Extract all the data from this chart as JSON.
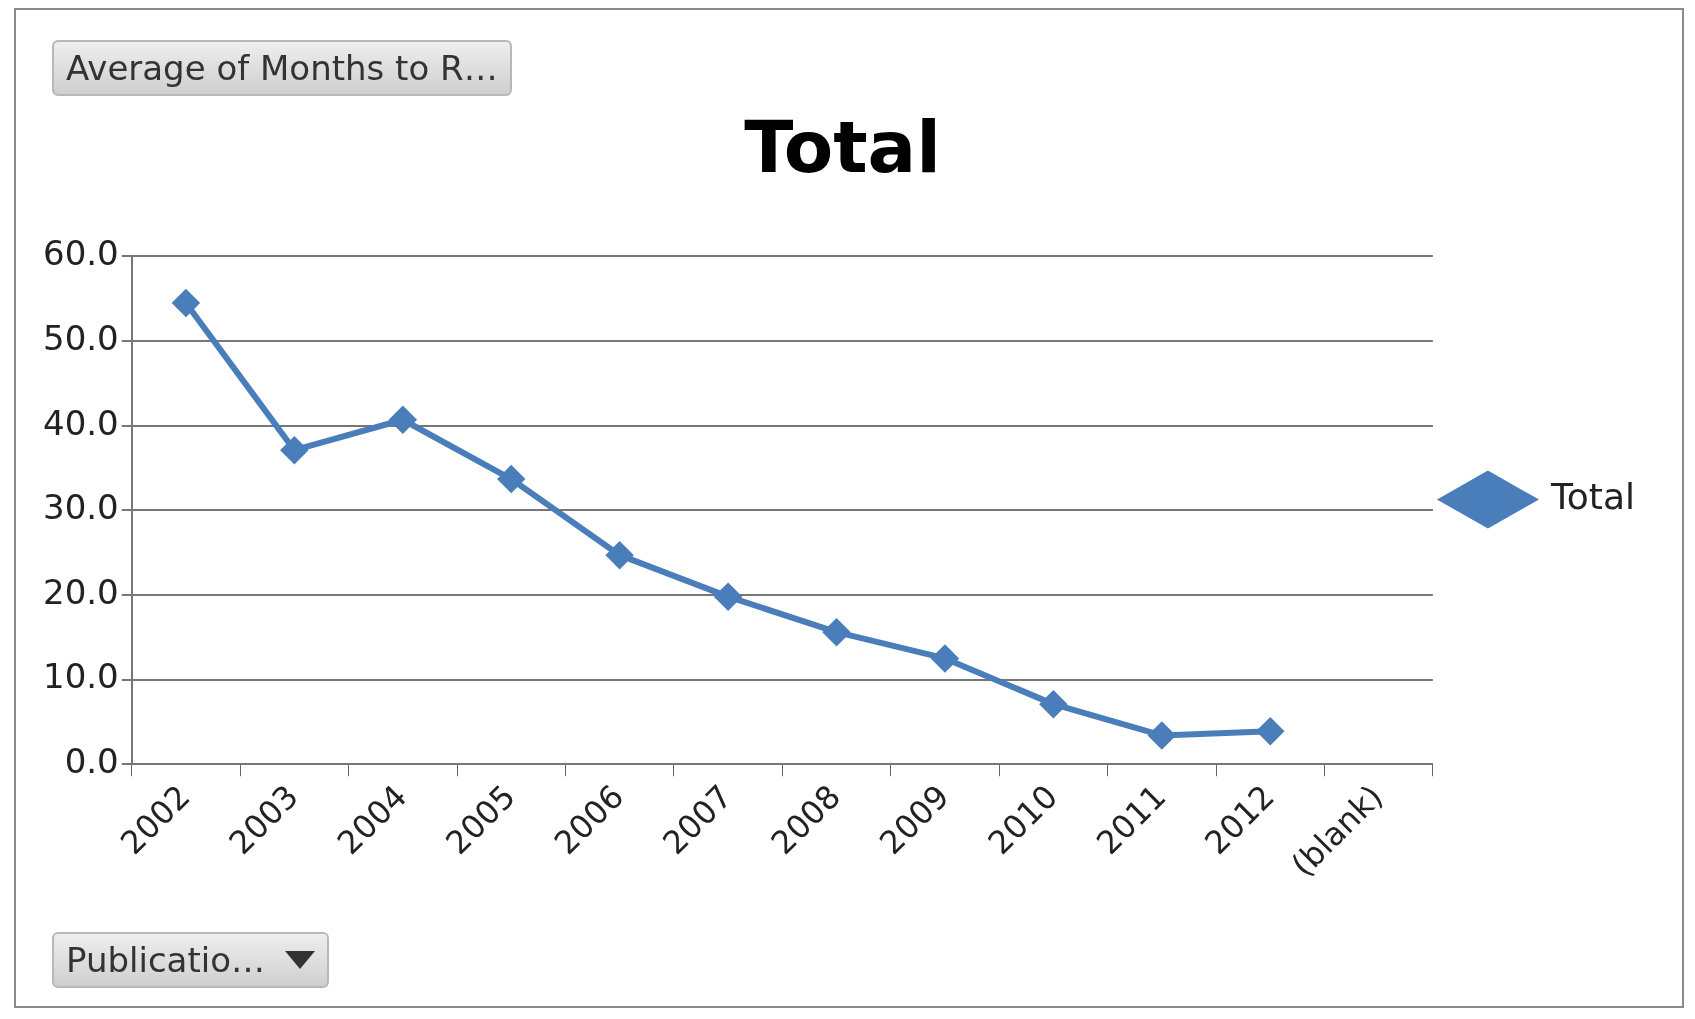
{
  "chart_data": {
    "type": "line",
    "title": "Total",
    "categories": [
      "2002",
      "2003",
      "2004",
      "2005",
      "2006",
      "2007",
      "2008",
      "2009",
      "2010",
      "2011",
      "2012",
      "(blank)"
    ],
    "series": [
      {
        "name": "Total",
        "color": "#4a7ebb",
        "values": [
          54.5,
          37.1,
          40.7,
          33.7,
          24.7,
          19.8,
          15.6,
          12.5,
          7.1,
          3.4,
          3.9,
          null
        ]
      }
    ],
    "ylim": [
      0,
      60
    ],
    "yticks": [
      {
        "value": 0,
        "label": "0.0"
      },
      {
        "value": 10,
        "label": "10.0"
      },
      {
        "value": 20,
        "label": "20.0"
      },
      {
        "value": 30,
        "label": "30.0"
      },
      {
        "value": 40,
        "label": "40.0"
      },
      {
        "value": 50,
        "label": "50.0"
      },
      {
        "value": 60,
        "label": "60.0"
      }
    ],
    "grid": "y",
    "legend": "right",
    "marker": "diamond",
    "line_style": "solid",
    "annotations": [
      "Average of Months to R…",
      "Publicatio…"
    ]
  }
}
